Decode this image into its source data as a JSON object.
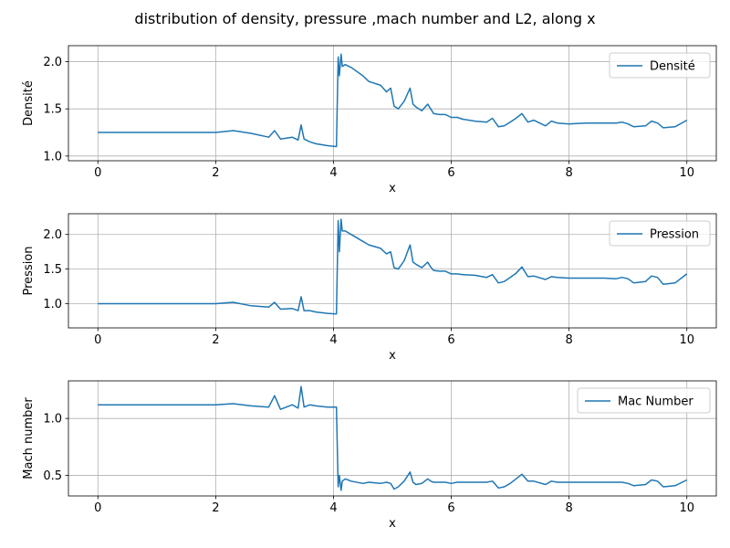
{
  "figure": {
    "title": "distribution of density, pressure ,mach number and L2, along x"
  },
  "chart_data": [
    {
      "type": "line",
      "xlabel": "x",
      "ylabel": "Densité",
      "xlim": [
        -0.5,
        10.5
      ],
      "ylim": [
        0.95,
        2.17
      ],
      "xticks": [
        0,
        2,
        4,
        6,
        8,
        10
      ],
      "xtick_labels": [
        "0",
        "2",
        "4",
        "6",
        "8",
        "10"
      ],
      "yticks": [
        1.0,
        1.5,
        2.0
      ],
      "ytick_labels": [
        "1.0",
        "1.5",
        "2.0"
      ],
      "grid": true,
      "legend_position": "top-right",
      "series": [
        {
          "name": "Densité",
          "color": "#1f77b4",
          "x": [
            0,
            1.0,
            2.0,
            2.3,
            2.6,
            2.9,
            3.0,
            3.1,
            3.3,
            3.4,
            3.45,
            3.5,
            3.6,
            3.7,
            3.9,
            4.05,
            4.08,
            4.1,
            4.13,
            4.15,
            4.2,
            4.3,
            4.5,
            4.6,
            4.8,
            4.9,
            4.97,
            5.03,
            5.1,
            5.2,
            5.3,
            5.35,
            5.4,
            5.5,
            5.6,
            5.65,
            5.7,
            5.8,
            5.9,
            6.0,
            6.1,
            6.2,
            6.4,
            6.6,
            6.7,
            6.8,
            6.9,
            7.0,
            7.1,
            7.2,
            7.3,
            7.4,
            7.6,
            7.7,
            7.8,
            8.0,
            8.3,
            8.6,
            8.8,
            8.9,
            9.0,
            9.1,
            9.3,
            9.4,
            9.5,
            9.6,
            9.8,
            10.0
          ],
          "y": [
            1.25,
            1.25,
            1.25,
            1.27,
            1.24,
            1.2,
            1.27,
            1.18,
            1.2,
            1.17,
            1.33,
            1.18,
            1.15,
            1.13,
            1.11,
            1.1,
            2.05,
            1.85,
            2.08,
            1.95,
            1.97,
            1.94,
            1.85,
            1.79,
            1.75,
            1.68,
            1.72,
            1.53,
            1.5,
            1.58,
            1.72,
            1.55,
            1.52,
            1.48,
            1.55,
            1.5,
            1.45,
            1.44,
            1.44,
            1.41,
            1.41,
            1.39,
            1.37,
            1.36,
            1.4,
            1.31,
            1.32,
            1.36,
            1.4,
            1.45,
            1.36,
            1.38,
            1.32,
            1.37,
            1.35,
            1.34,
            1.35,
            1.35,
            1.35,
            1.36,
            1.34,
            1.31,
            1.32,
            1.37,
            1.35,
            1.3,
            1.31,
            1.38
          ]
        }
      ]
    },
    {
      "type": "line",
      "xlabel": "x",
      "ylabel": "Pression",
      "xlim": [
        -0.5,
        10.5
      ],
      "ylim": [
        0.65,
        2.3
      ],
      "xticks": [
        0,
        2,
        4,
        6,
        8,
        10
      ],
      "xtick_labels": [
        "0",
        "2",
        "4",
        "6",
        "8",
        "10"
      ],
      "yticks": [
        1.0,
        1.5,
        2.0
      ],
      "ytick_labels": [
        "1.0",
        "1.5",
        "2.0"
      ],
      "grid": true,
      "legend_position": "top-right",
      "series": [
        {
          "name": "Pression",
          "color": "#1f77b4",
          "x": [
            0,
            1.0,
            2.0,
            2.3,
            2.6,
            2.9,
            3.0,
            3.1,
            3.3,
            3.4,
            3.45,
            3.5,
            3.6,
            3.7,
            3.9,
            4.05,
            4.08,
            4.1,
            4.13,
            4.15,
            4.2,
            4.3,
            4.5,
            4.6,
            4.8,
            4.9,
            4.97,
            5.03,
            5.1,
            5.2,
            5.3,
            5.35,
            5.4,
            5.5,
            5.6,
            5.65,
            5.7,
            5.8,
            5.9,
            6.0,
            6.1,
            6.2,
            6.4,
            6.6,
            6.7,
            6.8,
            6.9,
            7.0,
            7.1,
            7.2,
            7.3,
            7.4,
            7.6,
            7.7,
            7.8,
            8.0,
            8.3,
            8.6,
            8.8,
            8.9,
            9.0,
            9.1,
            9.3,
            9.4,
            9.5,
            9.6,
            9.8,
            10.0
          ],
          "y": [
            1.0,
            1.0,
            1.0,
            1.02,
            0.97,
            0.95,
            1.02,
            0.92,
            0.93,
            0.9,
            1.1,
            0.9,
            0.9,
            0.88,
            0.86,
            0.85,
            2.2,
            1.75,
            2.22,
            2.05,
            2.05,
            2.0,
            1.9,
            1.85,
            1.8,
            1.72,
            1.75,
            1.52,
            1.5,
            1.62,
            1.85,
            1.6,
            1.57,
            1.52,
            1.6,
            1.53,
            1.48,
            1.47,
            1.47,
            1.43,
            1.43,
            1.42,
            1.41,
            1.38,
            1.42,
            1.3,
            1.32,
            1.38,
            1.44,
            1.53,
            1.39,
            1.4,
            1.35,
            1.39,
            1.38,
            1.37,
            1.37,
            1.37,
            1.36,
            1.38,
            1.36,
            1.3,
            1.32,
            1.4,
            1.38,
            1.28,
            1.3,
            1.43
          ]
        }
      ]
    },
    {
      "type": "line",
      "xlabel": "x",
      "ylabel": "Mach number",
      "xlim": [
        -0.5,
        10.5
      ],
      "ylim": [
        0.32,
        1.33
      ],
      "xticks": [
        0,
        2,
        4,
        6,
        8,
        10
      ],
      "xtick_labels": [
        "0",
        "2",
        "4",
        "6",
        "8",
        "10"
      ],
      "yticks": [
        0.5,
        1.0
      ],
      "ytick_labels": [
        "0.5",
        "1.0"
      ],
      "grid": true,
      "legend_position": "top-right",
      "series": [
        {
          "name": "Mac Number",
          "color": "#1f77b4",
          "x": [
            0,
            1.0,
            2.0,
            2.3,
            2.6,
            2.9,
            3.0,
            3.1,
            3.3,
            3.4,
            3.45,
            3.5,
            3.6,
            3.7,
            3.9,
            4.05,
            4.08,
            4.1,
            4.13,
            4.15,
            4.2,
            4.3,
            4.5,
            4.6,
            4.8,
            4.9,
            4.97,
            5.03,
            5.1,
            5.2,
            5.3,
            5.35,
            5.4,
            5.5,
            5.6,
            5.65,
            5.7,
            5.8,
            5.9,
            6.0,
            6.1,
            6.2,
            6.4,
            6.6,
            6.7,
            6.8,
            6.9,
            7.0,
            7.1,
            7.2,
            7.3,
            7.4,
            7.6,
            7.7,
            7.8,
            8.0,
            8.3,
            8.6,
            8.8,
            8.9,
            9.0,
            9.1,
            9.3,
            9.4,
            9.5,
            9.6,
            9.8,
            10.0
          ],
          "y": [
            1.12,
            1.12,
            1.12,
            1.13,
            1.11,
            1.1,
            1.2,
            1.08,
            1.12,
            1.09,
            1.28,
            1.1,
            1.12,
            1.11,
            1.1,
            1.1,
            0.4,
            0.5,
            0.37,
            0.45,
            0.47,
            0.45,
            0.43,
            0.44,
            0.43,
            0.44,
            0.43,
            0.38,
            0.4,
            0.45,
            0.53,
            0.44,
            0.42,
            0.43,
            0.47,
            0.45,
            0.44,
            0.44,
            0.44,
            0.43,
            0.44,
            0.44,
            0.44,
            0.44,
            0.45,
            0.39,
            0.4,
            0.43,
            0.47,
            0.51,
            0.45,
            0.45,
            0.42,
            0.45,
            0.44,
            0.44,
            0.44,
            0.44,
            0.44,
            0.44,
            0.43,
            0.41,
            0.42,
            0.46,
            0.45,
            0.4,
            0.41,
            0.46
          ]
        }
      ]
    }
  ]
}
